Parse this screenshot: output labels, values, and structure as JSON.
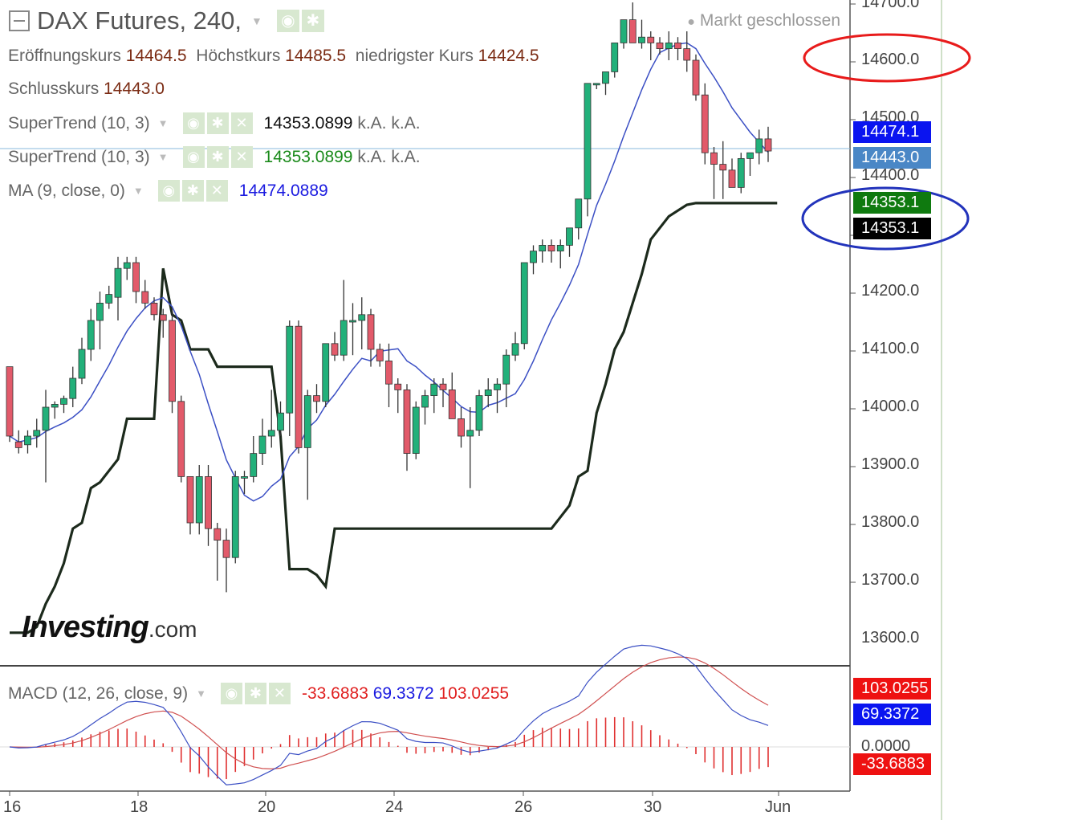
{
  "header": {
    "symbol_title": "DAX Futures, 240,",
    "status": "Markt geschlossen"
  },
  "ohlc": {
    "open_label": "Eröffnungskurs",
    "open": "14464.5",
    "high_label": "Höchstkurs",
    "high": "14485.5",
    "low_label": "niedrigster Kurs",
    "low": "14424.5",
    "close_label": "Schlusskurs",
    "close": "14443.0"
  },
  "indicators": [
    {
      "name": "SuperTrend (10, 3)",
      "value": "14353.0899",
      "na1": "k.A.",
      "na2": "k.A.",
      "color": "#111111"
    },
    {
      "name": "SuperTrend (10, 3)",
      "value": "14353.0899",
      "na1": "k.A.",
      "na2": "k.A.",
      "color": "#1a8a1a"
    },
    {
      "name": "MA (9, close, 0)",
      "value": "14474.0889",
      "color": "#1a1ae0"
    }
  ],
  "macd": {
    "name": "MACD (12, 26, close, 9)",
    "hist": "-33.6883",
    "macd": "69.3372",
    "signal": "103.0255"
  },
  "price_labels": [
    {
      "text": "14474.1",
      "color": "#0a14f0"
    },
    {
      "text": "14443.0",
      "color": "#4a87c6"
    },
    {
      "text": "14353.1",
      "color": "#0f7a0f"
    },
    {
      "text": "14353.1",
      "color": "#000000"
    }
  ],
  "macd_labels": [
    {
      "text": "103.0255",
      "color": "#ee1111"
    },
    {
      "text": "69.3372",
      "color": "#0a14f0"
    },
    {
      "text": "-33.6883",
      "color": "#ee1111"
    },
    {
      "text": "0.0000"
    }
  ],
  "logo": {
    "main": "Investing",
    "suffix": ".com"
  },
  "chart_data": {
    "type": "candlestick",
    "title": "DAX Futures, 240,",
    "y_ticks": [
      "14700.0",
      "14600.0",
      "14500.0",
      "14400.0",
      "14200.0",
      "14100.0",
      "14000.0",
      "13900.0",
      "13800.0",
      "13700.0",
      "13600.0"
    ],
    "ylim": [
      13550,
      14710
    ],
    "x_ticks": [
      "16",
      "18",
      "20",
      "24",
      "26",
      "30",
      "Jun"
    ],
    "candles": [
      [
        14070,
        14070,
        13940,
        13950
      ],
      [
        13940,
        13960,
        13920,
        13930
      ],
      [
        13935,
        13960,
        13920,
        13950
      ],
      [
        13950,
        13980,
        13930,
        13960
      ],
      [
        13960,
        14030,
        13870,
        14000
      ],
      [
        14000,
        14010,
        13980,
        14005
      ],
      [
        14005,
        14020,
        13990,
        14015
      ],
      [
        14015,
        14070,
        14000,
        14050
      ],
      [
        14050,
        14120,
        14040,
        14100
      ],
      [
        14100,
        14170,
        14080,
        14150
      ],
      [
        14150,
        14200,
        14100,
        14180
      ],
      [
        14180,
        14210,
        14170,
        14195
      ],
      [
        14190,
        14260,
        14150,
        14240
      ],
      [
        14240,
        14260,
        14220,
        14250
      ],
      [
        14250,
        14260,
        14180,
        14200
      ],
      [
        14200,
        14220,
        14170,
        14180
      ],
      [
        14180,
        14190,
        14150,
        14160
      ],
      [
        14160,
        14170,
        14120,
        14150
      ],
      [
        14150,
        14170,
        13990,
        14010
      ],
      [
        14010,
        14020,
        13870,
        13880
      ],
      [
        13880,
        13880,
        13780,
        13800
      ],
      [
        13800,
        13900,
        13780,
        13880
      ],
      [
        13880,
        13900,
        13760,
        13790
      ],
      [
        13790,
        13800,
        13700,
        13770
      ],
      [
        13770,
        13790,
        13680,
        13740
      ],
      [
        13740,
        13890,
        13730,
        13880
      ],
      [
        13880,
        13890,
        13850,
        13880
      ],
      [
        13880,
        13950,
        13870,
        13920
      ],
      [
        13920,
        13980,
        13900,
        13950
      ],
      [
        13950,
        14030,
        13930,
        13960
      ],
      [
        13960,
        14010,
        13950,
        13990
      ],
      [
        13990,
        14150,
        13950,
        14140
      ],
      [
        14140,
        14150,
        13920,
        13930
      ],
      [
        13930,
        14030,
        13840,
        14020
      ],
      [
        14020,
        14040,
        13990,
        14010
      ],
      [
        14010,
        14110,
        14000,
        14110
      ],
      [
        14110,
        14130,
        14080,
        14090
      ],
      [
        14090,
        14220,
        14080,
        14150
      ],
      [
        14150,
        14180,
        14090,
        14150
      ],
      [
        14150,
        14190,
        14100,
        14160
      ],
      [
        14160,
        14170,
        14070,
        14100
      ],
      [
        14100,
        14110,
        14070,
        14080
      ],
      [
        14080,
        14110,
        14000,
        14040
      ],
      [
        14040,
        14050,
        13990,
        14030
      ],
      [
        14030,
        14040,
        13890,
        13920
      ],
      [
        13920,
        14010,
        13910,
        14000
      ],
      [
        14000,
        14030,
        13970,
        14020
      ],
      [
        14020,
        14050,
        13990,
        14040
      ],
      [
        14040,
        14050,
        14000,
        14030
      ],
      [
        14030,
        14060,
        13980,
        13980
      ],
      [
        13980,
        14000,
        13930,
        13950
      ],
      [
        13950,
        14000,
        13860,
        13960
      ],
      [
        13960,
        14030,
        13950,
        14020
      ],
      [
        14020,
        14050,
        14000,
        14030
      ],
      [
        14030,
        14050,
        13990,
        14040
      ],
      [
        14040,
        14100,
        14000,
        14090
      ],
      [
        14090,
        14130,
        14080,
        14110
      ],
      [
        14110,
        14250,
        14100,
        14250
      ],
      [
        14250,
        14280,
        14230,
        14270
      ],
      [
        14270,
        14290,
        14250,
        14280
      ],
      [
        14280,
        14290,
        14250,
        14270
      ],
      [
        14270,
        14290,
        14240,
        14280
      ],
      [
        14280,
        14300,
        14260,
        14310
      ],
      [
        14310,
        14360,
        14290,
        14360
      ],
      [
        14360,
        14560,
        14330,
        14560
      ],
      [
        14560,
        14560,
        14550,
        14560
      ],
      [
        14560,
        14570,
        14540,
        14580
      ],
      [
        14580,
        14620,
        14570,
        14630
      ],
      [
        14630,
        14660,
        14620,
        14670
      ],
      [
        14670,
        14700,
        14640,
        14630
      ],
      [
        14630,
        14670,
        14620,
        14640
      ],
      [
        14640,
        14650,
        14600,
        14630
      ],
      [
        14630,
        14640,
        14610,
        14620
      ],
      [
        14620,
        14650,
        14600,
        14630
      ],
      [
        14630,
        14640,
        14600,
        14620
      ],
      [
        14620,
        14650,
        14580,
        14600
      ],
      [
        14600,
        14610,
        14530,
        14540
      ],
      [
        14540,
        14560,
        14420,
        14440
      ],
      [
        14440,
        14450,
        14360,
        14420
      ],
      [
        14420,
        14460,
        14360,
        14410
      ],
      [
        14410,
        14430,
        14380,
        14380
      ],
      [
        14380,
        14440,
        14370,
        14430
      ],
      [
        14430,
        14440,
        14400,
        14440
      ],
      [
        14440,
        14480,
        14420,
        14464
      ],
      [
        14464,
        14485,
        14424,
        14443
      ]
    ],
    "series": [
      {
        "name": "MA (9, close, 0)",
        "color": "#3b4fc4"
      },
      {
        "name": "SuperTrend (10, 3)",
        "color": "#1c2a1c",
        "values": [
          13610,
          13610,
          13610,
          13620,
          13660,
          13690,
          13730,
          13790,
          13800,
          13860,
          13870,
          13890,
          13910,
          13980,
          13980,
          13980,
          13980,
          14240,
          14160,
          14150,
          14100,
          14100,
          14100,
          14070,
          14070,
          14070,
          14070,
          14070,
          14070,
          14070,
          13950,
          13720,
          13720,
          13720,
          13710,
          13690,
          13790,
          13790,
          13790,
          13790,
          13790,
          13790,
          13790,
          13790,
          13790,
          13790,
          13790,
          13790,
          13790,
          13790,
          13790,
          13790,
          13790,
          13790,
          13790,
          13790,
          13790,
          13790,
          13790,
          13790,
          13790,
          13810,
          13830,
          13880,
          13890,
          13990,
          14040,
          14100,
          14130,
          14180,
          14230,
          14290,
          14310,
          14330,
          14340,
          14350,
          14353,
          14353,
          14353,
          14353,
          14353,
          14353,
          14353,
          14353,
          14353,
          14353
        ]
      }
    ],
    "legend": "top-left"
  }
}
